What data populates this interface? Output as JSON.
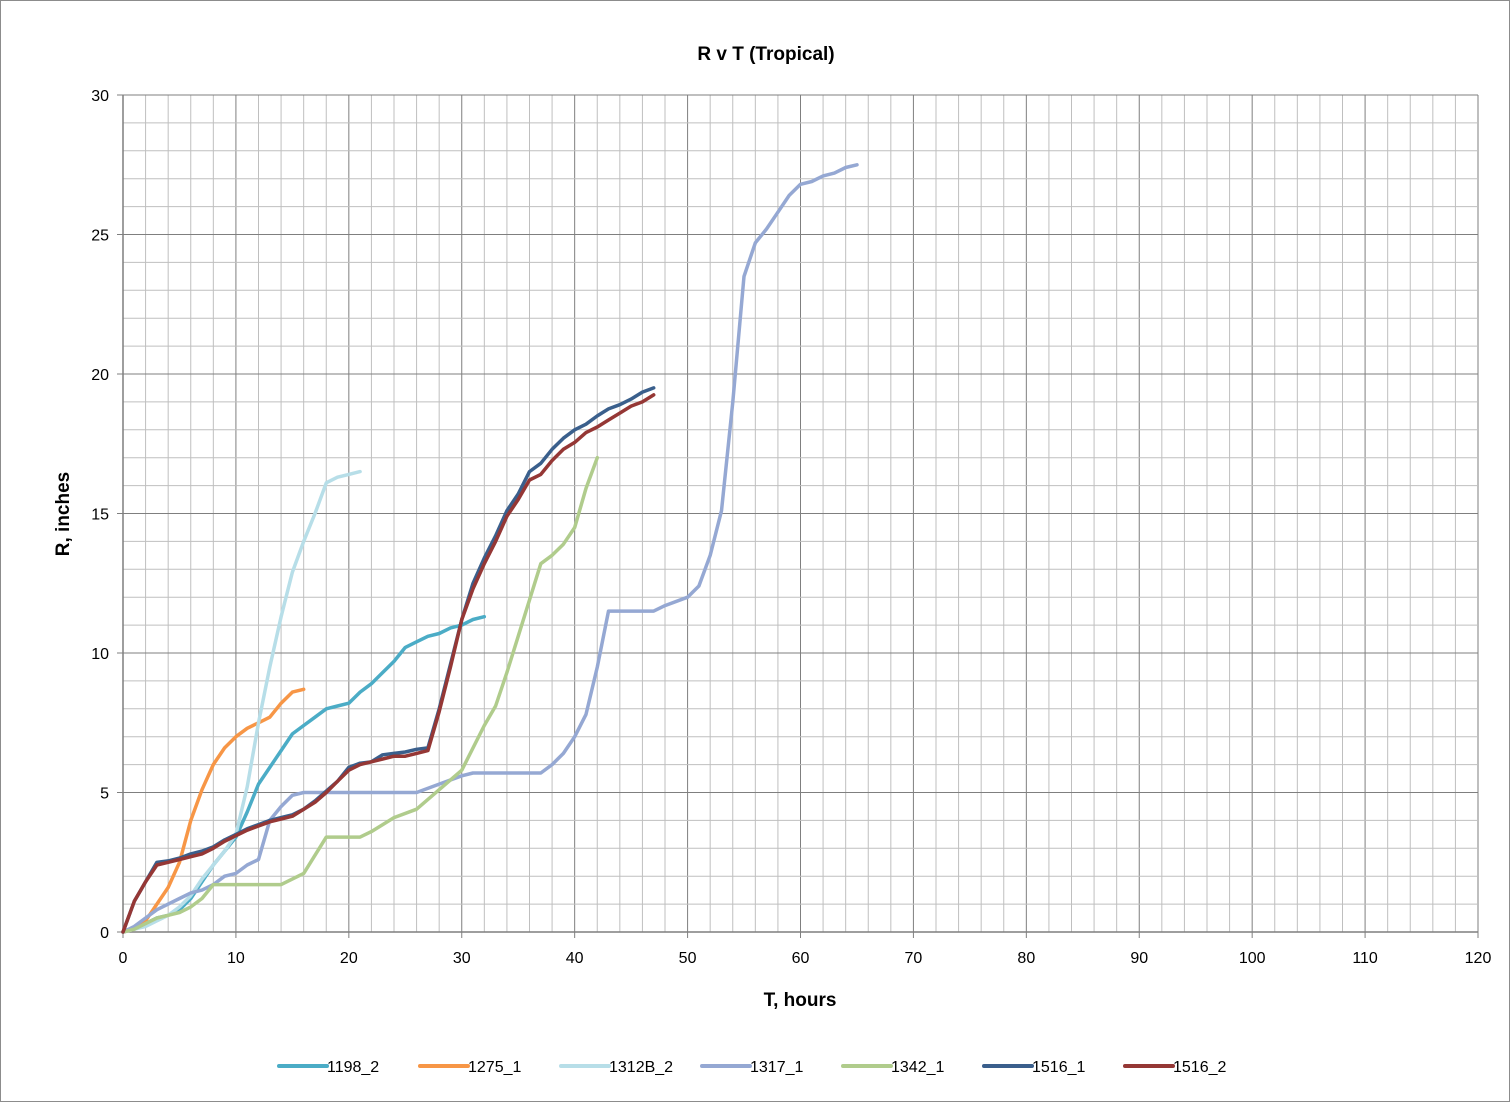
{
  "chart_data": {
    "type": "line",
    "title": "R v T (Tropical)",
    "xlabel": "T, hours",
    "ylabel": "R, inches",
    "xlim": [
      0,
      120
    ],
    "ylim": [
      0,
      30
    ],
    "x_ticks": [
      0,
      10,
      20,
      30,
      40,
      50,
      60,
      70,
      80,
      90,
      100,
      110,
      120
    ],
    "y_ticks": [
      0,
      5,
      10,
      15,
      20,
      25,
      30
    ],
    "grid": true,
    "legend_position": "bottom",
    "series": [
      {
        "name": "1198_2",
        "color": "#4bacc6",
        "points": [
          [
            0,
            0
          ],
          [
            1,
            0.1
          ],
          [
            2,
            0.3
          ],
          [
            3,
            0.5
          ],
          [
            4,
            0.6
          ],
          [
            5,
            0.8
          ],
          [
            6,
            1.2
          ],
          [
            7,
            1.8
          ],
          [
            8,
            2.4
          ],
          [
            9,
            2.9
          ],
          [
            10,
            3.4
          ],
          [
            11,
            4.3
          ],
          [
            12,
            5.3
          ],
          [
            13,
            5.9
          ],
          [
            14,
            6.5
          ],
          [
            15,
            7.1
          ],
          [
            16,
            7.4
          ],
          [
            17,
            7.7
          ],
          [
            18,
            8.0
          ],
          [
            19,
            8.1
          ],
          [
            20,
            8.2
          ],
          [
            21,
            8.6
          ],
          [
            22,
            8.9
          ],
          [
            23,
            9.3
          ],
          [
            24,
            9.7
          ],
          [
            25,
            10.2
          ],
          [
            26,
            10.4
          ],
          [
            27,
            10.6
          ],
          [
            28,
            10.7
          ],
          [
            29,
            10.9
          ],
          [
            30,
            11.0
          ],
          [
            31,
            11.2
          ],
          [
            32,
            11.3
          ]
        ]
      },
      {
        "name": "1275_1",
        "color": "#f79646",
        "points": [
          [
            0,
            0
          ],
          [
            1,
            0.1
          ],
          [
            2,
            0.4
          ],
          [
            3,
            1.0
          ],
          [
            4,
            1.6
          ],
          [
            5,
            2.5
          ],
          [
            6,
            4.0
          ],
          [
            7,
            5.1
          ],
          [
            8,
            6.0
          ],
          [
            9,
            6.6
          ],
          [
            10,
            7.0
          ],
          [
            11,
            7.3
          ],
          [
            12,
            7.5
          ],
          [
            13,
            7.7
          ],
          [
            14,
            8.2
          ],
          [
            15,
            8.6
          ],
          [
            16,
            8.7
          ]
        ]
      },
      {
        "name": "1312B_2",
        "color": "#b7dee8",
        "points": [
          [
            0,
            0
          ],
          [
            1,
            0.1
          ],
          [
            2,
            0.2
          ],
          [
            3,
            0.4
          ],
          [
            4,
            0.6
          ],
          [
            5,
            0.9
          ],
          [
            6,
            1.3
          ],
          [
            7,
            1.9
          ],
          [
            8,
            2.4
          ],
          [
            9,
            2.9
          ],
          [
            10,
            3.5
          ],
          [
            11,
            5.2
          ],
          [
            12,
            7.5
          ],
          [
            13,
            9.5
          ],
          [
            14,
            11.3
          ],
          [
            15,
            12.9
          ],
          [
            16,
            14.0
          ],
          [
            17,
            15.0
          ],
          [
            18,
            16.1
          ],
          [
            19,
            16.3
          ],
          [
            20,
            16.4
          ],
          [
            21,
            16.5
          ]
        ]
      },
      {
        "name": "1317_1",
        "color": "#95a8d3",
        "points": [
          [
            0,
            0
          ],
          [
            1,
            0.2
          ],
          [
            2,
            0.5
          ],
          [
            3,
            0.8
          ],
          [
            4,
            1.0
          ],
          [
            5,
            1.2
          ],
          [
            6,
            1.4
          ],
          [
            7,
            1.5
          ],
          [
            8,
            1.7
          ],
          [
            9,
            2.0
          ],
          [
            10,
            2.1
          ],
          [
            11,
            2.4
          ],
          [
            12,
            2.6
          ],
          [
            13,
            4.0
          ],
          [
            14,
            4.5
          ],
          [
            15,
            4.9
          ],
          [
            16,
            5.0
          ],
          [
            18,
            5.0
          ],
          [
            20,
            5.0
          ],
          [
            22,
            5.0
          ],
          [
            24,
            5.0
          ],
          [
            26,
            5.0
          ],
          [
            28,
            5.3
          ],
          [
            30,
            5.6
          ],
          [
            31,
            5.7
          ],
          [
            32,
            5.7
          ],
          [
            34,
            5.7
          ],
          [
            36,
            5.7
          ],
          [
            37,
            5.7
          ],
          [
            38,
            6.0
          ],
          [
            39,
            6.4
          ],
          [
            40,
            7.0
          ],
          [
            41,
            7.8
          ],
          [
            42,
            9.5
          ],
          [
            43,
            11.5
          ],
          [
            44,
            11.5
          ],
          [
            46,
            11.5
          ],
          [
            47,
            11.5
          ],
          [
            48,
            11.7
          ],
          [
            50,
            12.0
          ],
          [
            51,
            12.4
          ],
          [
            52,
            13.5
          ],
          [
            53,
            15.1
          ],
          [
            54,
            19.0
          ],
          [
            55,
            23.5
          ],
          [
            56,
            24.7
          ],
          [
            57,
            25.2
          ],
          [
            58,
            25.8
          ],
          [
            59,
            26.4
          ],
          [
            60,
            26.8
          ],
          [
            61,
            26.9
          ],
          [
            62,
            27.1
          ],
          [
            63,
            27.2
          ],
          [
            64,
            27.4
          ],
          [
            65,
            27.5
          ]
        ]
      },
      {
        "name": "1342_1",
        "color": "#b0cc8c",
        "points": [
          [
            0,
            0
          ],
          [
            1,
            0.1
          ],
          [
            2,
            0.3
          ],
          [
            3,
            0.5
          ],
          [
            4,
            0.6
          ],
          [
            5,
            0.7
          ],
          [
            6,
            0.9
          ],
          [
            7,
            1.2
          ],
          [
            8,
            1.7
          ],
          [
            10,
            1.7
          ],
          [
            12,
            1.7
          ],
          [
            14,
            1.7
          ],
          [
            16,
            2.1
          ],
          [
            18,
            3.4
          ],
          [
            20,
            3.4
          ],
          [
            21,
            3.4
          ],
          [
            22,
            3.6
          ],
          [
            24,
            4.1
          ],
          [
            26,
            4.4
          ],
          [
            28,
            5.1
          ],
          [
            30,
            5.8
          ],
          [
            32,
            7.4
          ],
          [
            33,
            8.1
          ],
          [
            34,
            9.3
          ],
          [
            35,
            10.6
          ],
          [
            36,
            11.9
          ],
          [
            37,
            13.2
          ],
          [
            38,
            13.5
          ],
          [
            39,
            13.9
          ],
          [
            40,
            14.5
          ],
          [
            41,
            15.9
          ],
          [
            42,
            17.0
          ]
        ]
      },
      {
        "name": "1516_1",
        "color": "#3a5f8c",
        "points": [
          [
            0,
            0
          ],
          [
            1,
            1.1
          ],
          [
            2,
            1.8
          ],
          [
            3,
            2.5
          ],
          [
            4,
            2.55
          ],
          [
            5,
            2.65
          ],
          [
            6,
            2.8
          ],
          [
            7,
            2.9
          ],
          [
            8,
            3.05
          ],
          [
            9,
            3.3
          ],
          [
            10,
            3.5
          ],
          [
            11,
            3.7
          ],
          [
            12,
            3.85
          ],
          [
            13,
            4.0
          ],
          [
            14,
            4.1
          ],
          [
            15,
            4.2
          ],
          [
            16,
            4.4
          ],
          [
            17,
            4.7
          ],
          [
            18,
            5.05
          ],
          [
            19,
            5.4
          ],
          [
            20,
            5.9
          ],
          [
            21,
            6.05
          ],
          [
            22,
            6.1
          ],
          [
            23,
            6.35
          ],
          [
            24,
            6.4
          ],
          [
            25,
            6.45
          ],
          [
            26,
            6.55
          ],
          [
            27,
            6.6
          ],
          [
            28,
            8.0
          ],
          [
            29,
            9.6
          ],
          [
            30,
            11.2
          ],
          [
            31,
            12.5
          ],
          [
            32,
            13.4
          ],
          [
            33,
            14.2
          ],
          [
            34,
            15.1
          ],
          [
            35,
            15.7
          ],
          [
            36,
            16.5
          ],
          [
            37,
            16.8
          ],
          [
            38,
            17.3
          ],
          [
            39,
            17.7
          ],
          [
            40,
            18.0
          ],
          [
            41,
            18.2
          ],
          [
            42,
            18.5
          ],
          [
            43,
            18.75
          ],
          [
            44,
            18.9
          ],
          [
            45,
            19.1
          ],
          [
            46,
            19.35
          ],
          [
            47,
            19.5
          ]
        ]
      },
      {
        "name": "1516_2",
        "color": "#953735",
        "points": [
          [
            0,
            0
          ],
          [
            1,
            1.1
          ],
          [
            2,
            1.8
          ],
          [
            3,
            2.4
          ],
          [
            4,
            2.5
          ],
          [
            5,
            2.6
          ],
          [
            6,
            2.7
          ],
          [
            7,
            2.8
          ],
          [
            8,
            3.0
          ],
          [
            9,
            3.25
          ],
          [
            10,
            3.45
          ],
          [
            11,
            3.65
          ],
          [
            12,
            3.8
          ],
          [
            13,
            3.95
          ],
          [
            14,
            4.05
          ],
          [
            15,
            4.15
          ],
          [
            16,
            4.4
          ],
          [
            17,
            4.65
          ],
          [
            18,
            5.0
          ],
          [
            19,
            5.4
          ],
          [
            20,
            5.8
          ],
          [
            21,
            6.0
          ],
          [
            22,
            6.1
          ],
          [
            23,
            6.2
          ],
          [
            24,
            6.3
          ],
          [
            25,
            6.3
          ],
          [
            26,
            6.4
          ],
          [
            27,
            6.5
          ],
          [
            28,
            7.9
          ],
          [
            29,
            9.5
          ],
          [
            30,
            11.2
          ],
          [
            31,
            12.3
          ],
          [
            32,
            13.2
          ],
          [
            33,
            14.0
          ],
          [
            34,
            14.9
          ],
          [
            35,
            15.5
          ],
          [
            36,
            16.2
          ],
          [
            37,
            16.4
          ],
          [
            38,
            16.9
          ],
          [
            39,
            17.3
          ],
          [
            40,
            17.55
          ],
          [
            41,
            17.9
          ],
          [
            42,
            18.1
          ],
          [
            43,
            18.35
          ],
          [
            44,
            18.6
          ],
          [
            45,
            18.85
          ],
          [
            46,
            19.0
          ],
          [
            47,
            19.25
          ]
        ]
      }
    ]
  }
}
